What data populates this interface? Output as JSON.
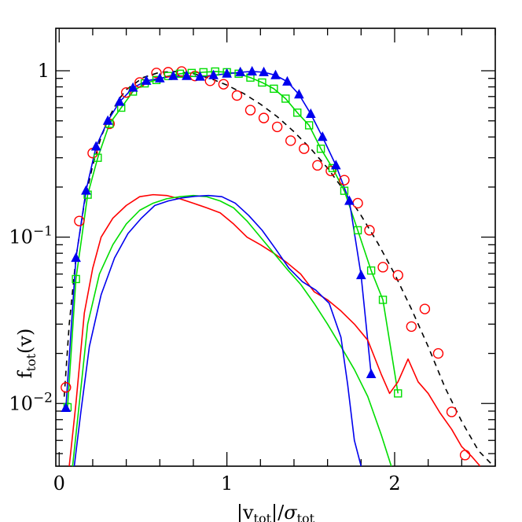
{
  "chart_data": {
    "type": "line",
    "title": "",
    "xlabel": "|v_tot|/σ_tot",
    "ylabel": "f_tot(v)",
    "xlim": [
      -0.02,
      2.6
    ],
    "ylim": [
      0.0042,
      1.8
    ],
    "yscale": "log",
    "grid": false,
    "x_ticks": [
      {
        "value": 0,
        "label": "0"
      },
      {
        "value": 1,
        "label": "1"
      },
      {
        "value": 2,
        "label": "2"
      }
    ],
    "y_ticks": [
      {
        "value": 1,
        "label": "1",
        "exp": ""
      },
      {
        "value": 0.1,
        "label": "10",
        "exp": "−1"
      },
      {
        "value": 0.01,
        "label": "10",
        "exp": "−2"
      }
    ],
    "series": [
      {
        "color": "#000000",
        "line": "dashed",
        "marker": "none",
        "x": [
          0.03,
          0.06,
          0.1,
          0.15,
          0.2,
          0.25,
          0.3,
          0.35,
          0.4,
          0.5,
          0.6,
          0.7,
          0.8,
          0.9,
          1.0,
          1.1,
          1.2,
          1.3,
          1.4,
          1.5,
          1.6,
          1.7,
          1.8,
          1.9,
          2.0,
          2.1,
          2.2,
          2.3,
          2.4,
          2.5,
          2.58
        ],
        "y": [
          0.011,
          0.03,
          0.075,
          0.16,
          0.27,
          0.4,
          0.53,
          0.66,
          0.77,
          0.91,
          0.98,
          0.99,
          0.96,
          0.9,
          0.82,
          0.73,
          0.63,
          0.53,
          0.43,
          0.34,
          0.26,
          0.19,
          0.135,
          0.092,
          0.06,
          0.037,
          0.022,
          0.0125,
          0.0078,
          0.0052,
          0.0043
        ]
      },
      {
        "color": "#ff0000",
        "line": "none",
        "marker": "circle",
        "x": [
          0.04,
          0.12,
          0.2,
          0.3,
          0.4,
          0.48,
          0.58,
          0.65,
          0.73,
          0.81,
          0.9,
          0.98,
          1.06,
          1.14,
          1.22,
          1.3,
          1.38,
          1.46,
          1.54,
          1.62,
          1.7,
          1.78,
          1.85,
          1.93,
          2.02,
          2.1,
          2.18,
          2.26,
          2.34,
          2.42,
          2.51
        ],
        "y": [
          0.0125,
          0.125,
          0.32,
          0.48,
          0.74,
          0.85,
          0.97,
          0.98,
          0.99,
          0.93,
          0.87,
          0.83,
          0.71,
          0.58,
          0.52,
          0.46,
          0.38,
          0.34,
          0.27,
          0.25,
          0.22,
          0.16,
          0.11,
          0.066,
          0.059,
          0.029,
          0.037,
          0.02,
          0.0089,
          0.0049,
          0.0035
        ]
      },
      {
        "color": "#00dd00",
        "line": "solid",
        "marker": "square",
        "x": [
          0.05,
          0.1,
          0.17,
          0.23,
          0.3,
          0.37,
          0.44,
          0.51,
          0.58,
          0.65,
          0.72,
          0.79,
          0.86,
          0.93,
          1.0,
          1.07,
          1.14,
          1.21,
          1.28,
          1.35,
          1.42,
          1.49,
          1.56,
          1.63,
          1.7,
          1.78,
          1.86,
          1.93,
          2.02
        ],
        "y": [
          0.0095,
          0.056,
          0.18,
          0.3,
          0.48,
          0.6,
          0.75,
          0.84,
          0.88,
          0.93,
          0.96,
          0.97,
          0.98,
          0.99,
          0.98,
          0.96,
          0.91,
          0.85,
          0.78,
          0.68,
          0.56,
          0.47,
          0.34,
          0.26,
          0.19,
          0.11,
          0.063,
          0.042,
          0.0115
        ]
      },
      {
        "color": "#0000ee",
        "line": "solid",
        "marker": "triangle",
        "x": [
          0.04,
          0.1,
          0.16,
          0.22,
          0.29,
          0.36,
          0.44,
          0.52,
          0.6,
          0.68,
          0.76,
          0.84,
          0.92,
          1.0,
          1.08,
          1.15,
          1.22,
          1.29,
          1.36,
          1.43,
          1.5,
          1.57,
          1.65,
          1.73,
          1.8,
          1.86
        ],
        "y": [
          0.0094,
          0.075,
          0.19,
          0.35,
          0.5,
          0.65,
          0.79,
          0.87,
          0.9,
          0.93,
          0.93,
          0.92,
          0.94,
          0.96,
          0.98,
          0.99,
          0.98,
          0.94,
          0.86,
          0.72,
          0.55,
          0.4,
          0.27,
          0.165,
          0.059,
          0.015
        ]
      },
      {
        "color": "#ff0000",
        "line": "solid",
        "marker": "none",
        "x": [
          0.06,
          0.1,
          0.15,
          0.2,
          0.25,
          0.32,
          0.4,
          0.48,
          0.56,
          0.64,
          0.72,
          0.8,
          0.88,
          0.96,
          1.04,
          1.12,
          1.2,
          1.28,
          1.36,
          1.44,
          1.52,
          1.6,
          1.68,
          1.76,
          1.84,
          1.92,
          1.97,
          2.02,
          2.08,
          2.14,
          2.2,
          2.27,
          2.34,
          2.4,
          2.46,
          2.51
        ],
        "y": [
          0.0042,
          0.01,
          0.035,
          0.065,
          0.1,
          0.13,
          0.155,
          0.175,
          0.18,
          0.178,
          0.17,
          0.16,
          0.15,
          0.14,
          0.12,
          0.1,
          0.09,
          0.08,
          0.07,
          0.06,
          0.047,
          0.042,
          0.036,
          0.03,
          0.024,
          0.015,
          0.0115,
          0.0135,
          0.0185,
          0.0135,
          0.0115,
          0.0088,
          0.007,
          0.0055,
          0.0048,
          0.0042
        ]
      },
      {
        "color": "#00dd00",
        "line": "solid",
        "marker": "none",
        "x": [
          0.08,
          0.12,
          0.17,
          0.24,
          0.32,
          0.4,
          0.48,
          0.56,
          0.64,
          0.72,
          0.8,
          0.88,
          0.96,
          1.04,
          1.12,
          1.2,
          1.28,
          1.36,
          1.44,
          1.52,
          1.6,
          1.68,
          1.76,
          1.84,
          1.92,
          1.98
        ],
        "y": [
          0.0042,
          0.01,
          0.03,
          0.06,
          0.09,
          0.12,
          0.145,
          0.16,
          0.17,
          0.175,
          0.178,
          0.175,
          0.165,
          0.15,
          0.125,
          0.1,
          0.08,
          0.064,
          0.052,
          0.04,
          0.03,
          0.022,
          0.016,
          0.011,
          0.0065,
          0.0042
        ]
      },
      {
        "color": "#0000ee",
        "line": "solid",
        "marker": "none",
        "x": [
          0.09,
          0.13,
          0.18,
          0.25,
          0.33,
          0.41,
          0.49,
          0.57,
          0.65,
          0.73,
          0.81,
          0.89,
          0.97,
          1.05,
          1.13,
          1.21,
          1.29,
          1.37,
          1.45,
          1.53,
          1.61,
          1.68,
          1.72,
          1.76,
          1.8
        ],
        "y": [
          0.0042,
          0.009,
          0.022,
          0.045,
          0.075,
          0.105,
          0.13,
          0.155,
          0.165,
          0.172,
          0.176,
          0.178,
          0.175,
          0.16,
          0.135,
          0.11,
          0.085,
          0.065,
          0.054,
          0.048,
          0.04,
          0.025,
          0.013,
          0.006,
          0.0042
        ]
      }
    ]
  }
}
